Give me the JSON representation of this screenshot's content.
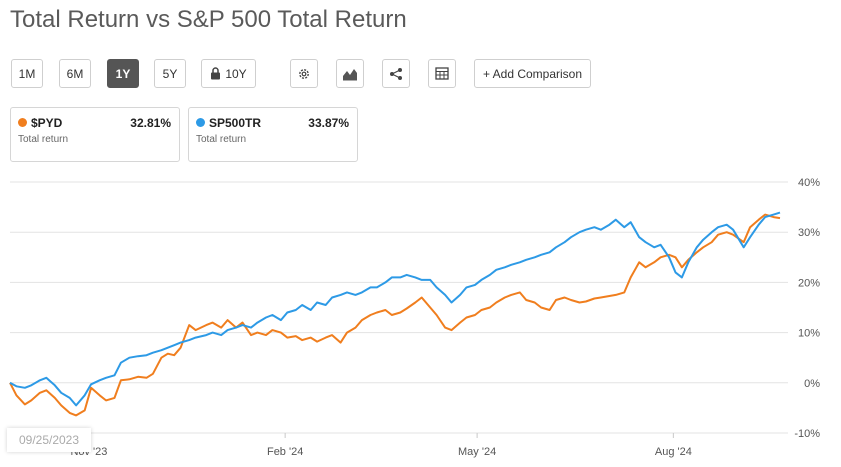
{
  "title": "Total Return vs S&P 500 Total Return",
  "toolbar": {
    "periods": [
      "1M",
      "6M",
      "1Y",
      "5Y"
    ],
    "active_period": "1Y",
    "locked_period": "10Y",
    "add_comparison": "+ Add Comparison",
    "icons": [
      "gear-icon",
      "area-chart-icon",
      "share-icon",
      "table-icon",
      "lock-icon"
    ]
  },
  "legend": [
    {
      "ticker": "$PYD",
      "value": "32.81%",
      "sub": "Total return",
      "color": "#f07e1e"
    },
    {
      "ticker": "SP500TR",
      "value": "33.87%",
      "sub": "Total return",
      "color": "#2d9ae6"
    }
  ],
  "start_date": "09/25/2023",
  "chart_data": {
    "type": "line",
    "x_ticks": [
      "Nov '23",
      "Feb '24",
      "May '24",
      "Aug '24"
    ],
    "x_tick_dates": [
      "2023-11-01",
      "2024-02-01",
      "2024-05-01",
      "2024-08-01"
    ],
    "x_range": [
      "2023-09-25",
      "2024-09-20"
    ],
    "ylim": [
      -10,
      40
    ],
    "y_ticks": [
      40,
      30,
      20,
      10,
      0,
      -10
    ],
    "y_tick_labels": [
      "40%",
      "30%",
      "20%",
      "10%",
      "0%",
      "-10%"
    ],
    "grid": true,
    "series": [
      {
        "name": "$PYD",
        "color": "#f07e1e",
        "points": [
          [
            "2023-09-25",
            0
          ],
          [
            "2023-09-28",
            -2.5
          ],
          [
            "2023-10-02",
            -4.3
          ],
          [
            "2023-10-05",
            -3.5
          ],
          [
            "2023-10-09",
            -2
          ],
          [
            "2023-10-12",
            -1.5
          ],
          [
            "2023-10-16",
            -3
          ],
          [
            "2023-10-19",
            -4.5
          ],
          [
            "2023-10-23",
            -6
          ],
          [
            "2023-10-26",
            -6.5
          ],
          [
            "2023-10-30",
            -5.5
          ],
          [
            "2023-11-02",
            -1
          ],
          [
            "2023-11-06",
            -2.5
          ],
          [
            "2023-11-09",
            -3.5
          ],
          [
            "2023-11-13",
            -3
          ],
          [
            "2023-11-16",
            0.5
          ],
          [
            "2023-11-20",
            0.7
          ],
          [
            "2023-11-24",
            1.2
          ],
          [
            "2023-11-28",
            1
          ],
          [
            "2023-12-01",
            1.8
          ],
          [
            "2023-12-05",
            5
          ],
          [
            "2023-12-08",
            5.8
          ],
          [
            "2023-12-11",
            5.5
          ],
          [
            "2023-12-14",
            7
          ],
          [
            "2023-12-18",
            11.5
          ],
          [
            "2023-12-21",
            10.5
          ],
          [
            "2023-12-26",
            11.5
          ],
          [
            "2023-12-29",
            12
          ],
          [
            "2024-01-02",
            11
          ],
          [
            "2024-01-05",
            12.5
          ],
          [
            "2024-01-09",
            11
          ],
          [
            "2024-01-12",
            12
          ],
          [
            "2024-01-16",
            9.5
          ],
          [
            "2024-01-19",
            10
          ],
          [
            "2024-01-23",
            9.5
          ],
          [
            "2024-01-26",
            10.5
          ],
          [
            "2024-01-30",
            10
          ],
          [
            "2024-02-02",
            9
          ],
          [
            "2024-02-06",
            9.3
          ],
          [
            "2024-02-09",
            8.5
          ],
          [
            "2024-02-13",
            9
          ],
          [
            "2024-02-16",
            8.2
          ],
          [
            "2024-02-20",
            9
          ],
          [
            "2024-02-23",
            9.5
          ],
          [
            "2024-02-27",
            8
          ],
          [
            "2024-03-01",
            10
          ],
          [
            "2024-03-05",
            11
          ],
          [
            "2024-03-08",
            12.5
          ],
          [
            "2024-03-12",
            13.5
          ],
          [
            "2024-03-15",
            14
          ],
          [
            "2024-03-19",
            14.5
          ],
          [
            "2024-03-22",
            13.5
          ],
          [
            "2024-03-26",
            14
          ],
          [
            "2024-03-29",
            14.8
          ],
          [
            "2024-04-02",
            16
          ],
          [
            "2024-04-05",
            17
          ],
          [
            "2024-04-09",
            15
          ],
          [
            "2024-04-12",
            13.5
          ],
          [
            "2024-04-16",
            11
          ],
          [
            "2024-04-19",
            10.5
          ],
          [
            "2024-04-23",
            12
          ],
          [
            "2024-04-26",
            13
          ],
          [
            "2024-04-30",
            13.5
          ],
          [
            "2024-05-03",
            14.5
          ],
          [
            "2024-05-07",
            15
          ],
          [
            "2024-05-10",
            16
          ],
          [
            "2024-05-14",
            17
          ],
          [
            "2024-05-17",
            17.5
          ],
          [
            "2024-05-21",
            18
          ],
          [
            "2024-05-24",
            16.5
          ],
          [
            "2024-05-28",
            16
          ],
          [
            "2024-05-31",
            15
          ],
          [
            "2024-06-04",
            14.5
          ],
          [
            "2024-06-07",
            16.5
          ],
          [
            "2024-06-11",
            17
          ],
          [
            "2024-06-14",
            16.5
          ],
          [
            "2024-06-18",
            16
          ],
          [
            "2024-06-21",
            16.2
          ],
          [
            "2024-06-25",
            16.8
          ],
          [
            "2024-06-28",
            17
          ],
          [
            "2024-07-02",
            17.3
          ],
          [
            "2024-07-05",
            17.5
          ],
          [
            "2024-07-09",
            18
          ],
          [
            "2024-07-12",
            21
          ],
          [
            "2024-07-16",
            24
          ],
          [
            "2024-07-19",
            23
          ],
          [
            "2024-07-23",
            24
          ],
          [
            "2024-07-26",
            25
          ],
          [
            "2024-07-30",
            25.5
          ],
          [
            "2024-08-02",
            25
          ],
          [
            "2024-08-05",
            23
          ],
          [
            "2024-08-08",
            24.5
          ],
          [
            "2024-08-12",
            26
          ],
          [
            "2024-08-15",
            27
          ],
          [
            "2024-08-19",
            28
          ],
          [
            "2024-08-22",
            29.5
          ],
          [
            "2024-08-26",
            30
          ],
          [
            "2024-08-29",
            29.5
          ],
          [
            "2024-09-03",
            28
          ],
          [
            "2024-09-06",
            31
          ],
          [
            "2024-09-10",
            32.5
          ],
          [
            "2024-09-13",
            33.5
          ],
          [
            "2024-09-17",
            33
          ],
          [
            "2024-09-20",
            32.8
          ]
        ]
      },
      {
        "name": "SP500TR",
        "color": "#2d9ae6",
        "points": [
          [
            "2023-09-25",
            0
          ],
          [
            "2023-09-28",
            -0.7
          ],
          [
            "2023-10-02",
            -1
          ],
          [
            "2023-10-05",
            -0.5
          ],
          [
            "2023-10-09",
            0.5
          ],
          [
            "2023-10-12",
            1
          ],
          [
            "2023-10-16",
            -0.5
          ],
          [
            "2023-10-19",
            -2
          ],
          [
            "2023-10-23",
            -3
          ],
          [
            "2023-10-26",
            -4.5
          ],
          [
            "2023-10-30",
            -2.5
          ],
          [
            "2023-11-02",
            -0.3
          ],
          [
            "2023-11-06",
            0.5
          ],
          [
            "2023-11-09",
            1
          ],
          [
            "2023-11-13",
            1.5
          ],
          [
            "2023-11-16",
            4
          ],
          [
            "2023-11-20",
            5
          ],
          [
            "2023-11-24",
            5.3
          ],
          [
            "2023-11-28",
            5.5
          ],
          [
            "2023-12-01",
            6
          ],
          [
            "2023-12-05",
            6.5
          ],
          [
            "2023-12-08",
            7
          ],
          [
            "2023-12-11",
            7.5
          ],
          [
            "2023-12-14",
            8
          ],
          [
            "2023-12-18",
            8.5
          ],
          [
            "2023-12-21",
            9
          ],
          [
            "2023-12-26",
            9.5
          ],
          [
            "2023-12-29",
            10
          ],
          [
            "2024-01-02",
            9.5
          ],
          [
            "2024-01-05",
            10.5
          ],
          [
            "2024-01-09",
            11
          ],
          [
            "2024-01-12",
            11.5
          ],
          [
            "2024-01-16",
            11
          ],
          [
            "2024-01-19",
            12
          ],
          [
            "2024-01-23",
            13
          ],
          [
            "2024-01-26",
            13.5
          ],
          [
            "2024-01-30",
            12.5
          ],
          [
            "2024-02-02",
            14
          ],
          [
            "2024-02-06",
            14.5
          ],
          [
            "2024-02-09",
            15.5
          ],
          [
            "2024-02-13",
            14.5
          ],
          [
            "2024-02-16",
            16
          ],
          [
            "2024-02-20",
            15.5
          ],
          [
            "2024-02-23",
            17
          ],
          [
            "2024-02-27",
            17.5
          ],
          [
            "2024-03-01",
            18
          ],
          [
            "2024-03-05",
            17.5
          ],
          [
            "2024-03-08",
            18
          ],
          [
            "2024-03-12",
            19
          ],
          [
            "2024-03-15",
            19
          ],
          [
            "2024-03-19",
            20
          ],
          [
            "2024-03-22",
            21
          ],
          [
            "2024-03-26",
            21
          ],
          [
            "2024-03-29",
            21.5
          ],
          [
            "2024-04-02",
            21
          ],
          [
            "2024-04-05",
            20.5
          ],
          [
            "2024-04-09",
            20.5
          ],
          [
            "2024-04-12",
            19
          ],
          [
            "2024-04-16",
            17.5
          ],
          [
            "2024-04-19",
            16
          ],
          [
            "2024-04-23",
            17.5
          ],
          [
            "2024-04-26",
            19
          ],
          [
            "2024-04-30",
            19.5
          ],
          [
            "2024-05-03",
            20.5
          ],
          [
            "2024-05-07",
            21.5
          ],
          [
            "2024-05-10",
            22.5
          ],
          [
            "2024-05-14",
            23
          ],
          [
            "2024-05-17",
            23.5
          ],
          [
            "2024-05-21",
            24
          ],
          [
            "2024-05-24",
            24.5
          ],
          [
            "2024-05-28",
            25
          ],
          [
            "2024-05-31",
            25.5
          ],
          [
            "2024-06-04",
            26
          ],
          [
            "2024-06-07",
            27
          ],
          [
            "2024-06-11",
            28
          ],
          [
            "2024-06-14",
            29
          ],
          [
            "2024-06-18",
            30
          ],
          [
            "2024-06-21",
            30.5
          ],
          [
            "2024-06-25",
            31
          ],
          [
            "2024-06-28",
            30.5
          ],
          [
            "2024-07-02",
            31.5
          ],
          [
            "2024-07-05",
            32.5
          ],
          [
            "2024-07-09",
            31
          ],
          [
            "2024-07-12",
            32
          ],
          [
            "2024-07-16",
            29
          ],
          [
            "2024-07-19",
            28
          ],
          [
            "2024-07-23",
            27
          ],
          [
            "2024-07-26",
            27.5
          ],
          [
            "2024-07-30",
            25
          ],
          [
            "2024-08-02",
            22
          ],
          [
            "2024-08-05",
            21
          ],
          [
            "2024-08-08",
            24
          ],
          [
            "2024-08-12",
            27
          ],
          [
            "2024-08-15",
            28.5
          ],
          [
            "2024-08-19",
            30
          ],
          [
            "2024-08-22",
            31
          ],
          [
            "2024-08-26",
            31.5
          ],
          [
            "2024-08-29",
            30.5
          ],
          [
            "2024-09-03",
            27
          ],
          [
            "2024-09-06",
            29
          ],
          [
            "2024-09-10",
            31.5
          ],
          [
            "2024-09-13",
            33
          ],
          [
            "2024-09-17",
            33.5
          ],
          [
            "2024-09-20",
            33.9
          ]
        ]
      }
    ]
  }
}
